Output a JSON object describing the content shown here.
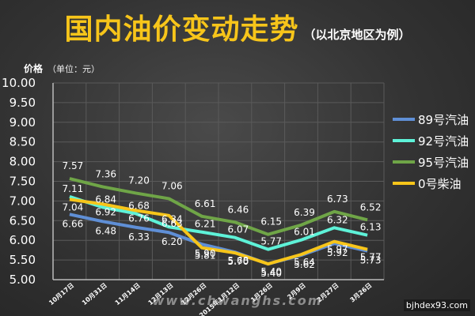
{
  "title": "国内油价变动走势",
  "subtitle": "（以北京地区为例）",
  "ylabel": "价格",
  "yunit": "（单位：元）",
  "watermark": "www.chwanghs.com",
  "watermark2": "bjhdex93.com",
  "colors": {
    "89号汽油": "#5f8fd6",
    "92号汽油": "#5ef2d8",
    "95号汽油": "#6fa547",
    "0号柴油": "#f7c51a"
  },
  "chart_data": {
    "type": "line",
    "categories": [
      "10月17日",
      "10月31日",
      "11月14日",
      "12月13日",
      "12月26日",
      "2015年1月12日",
      "1月26日",
      "2月9日",
      "2月27日",
      "3月26日"
    ],
    "ylim": [
      5.0,
      10.0
    ],
    "yticks": [
      "5.00",
      "5.50",
      "6.00",
      "6.50",
      "7.00",
      "7.50",
      "8.00",
      "8.50",
      "9.00",
      "9.50",
      "10.00"
    ],
    "grid": true,
    "legend_position": "right",
    "series": [
      {
        "name": "89号汽油",
        "values": [
          6.66,
          6.48,
          6.33,
          6.2,
          5.9,
          5.7,
          5.4,
          5.62,
          5.92,
          5.73
        ],
        "labels": [
          "6.66",
          "6.48",
          "6.33",
          "6.20",
          "5.90",
          "5.70",
          "5.40",
          "5.62",
          "5.92",
          "5.73"
        ]
      },
      {
        "name": "92号汽油",
        "values": [
          7.11,
          6.84,
          6.68,
          6.34,
          6.21,
          6.07,
          5.77,
          6.01,
          6.32,
          6.13
        ],
        "labels": [
          "7.11",
          "6.84",
          "6.68",
          "6.34",
          "6.21",
          "6.07",
          "5.77",
          "6.01",
          "6.32",
          "6.13"
        ]
      },
      {
        "name": "95号汽油",
        "values": [
          7.57,
          7.36,
          7.2,
          7.06,
          6.61,
          6.46,
          6.15,
          6.39,
          6.73,
          6.52
        ],
        "labels": [
          "7.57",
          "7.36",
          "7.20",
          "7.06",
          "6.61",
          "6.46",
          "6.15",
          "6.39",
          "6.73",
          "6.52"
        ]
      },
      {
        "name": "0号柴油",
        "values": [
          7.04,
          6.92,
          6.76,
          6.63,
          5.81,
          5.68,
          5.4,
          5.64,
          5.97,
          5.77
        ],
        "labels": [
          "7.04",
          "6.92",
          "6.76",
          "6.63",
          "5.81",
          "5.68",
          "5.40",
          "5.64",
          "5.97",
          "5.77"
        ]
      }
    ]
  }
}
